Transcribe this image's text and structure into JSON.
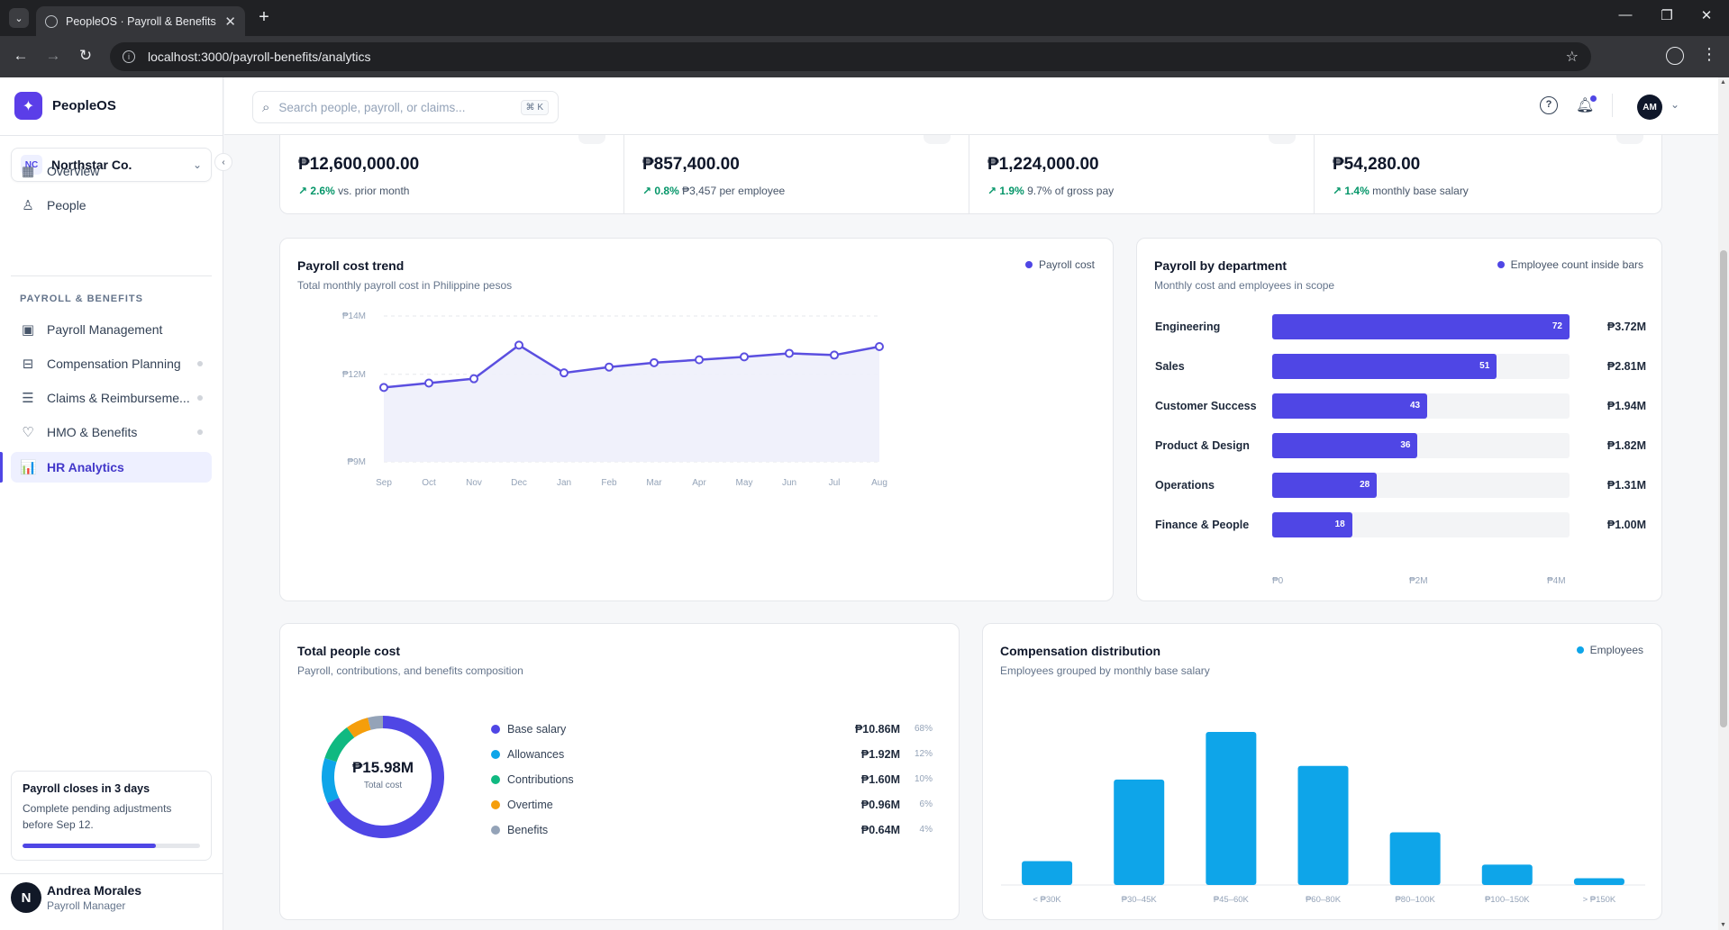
{
  "browser": {
    "tab_title": "PeopleOS · Payroll & Benefits",
    "url": "localhost:3000/payroll-benefits/analytics",
    "tab_close": "✕",
    "new_tab": "+"
  },
  "app": {
    "brand": "PeopleOS",
    "brand_color": "#5b3ee8",
    "accent": "#4f46e5"
  },
  "org": {
    "initials": "NC",
    "name": "Northstar Co."
  },
  "nav": {
    "primary": [
      {
        "label": "Overview",
        "icon": "grid-icon"
      },
      {
        "label": "People",
        "icon": "user-icon"
      }
    ],
    "section_label": "PAYROLL & BENEFITS",
    "secondary": [
      {
        "label": "Payroll Management",
        "icon": "wallet-icon"
      },
      {
        "label": "Compensation Planning",
        "icon": "briefcase-icon"
      },
      {
        "label": "Claims & Reimburseme...",
        "icon": "receipt-icon"
      },
      {
        "label": "HMO & Benefits",
        "icon": "heart-icon"
      },
      {
        "label": "HR Analytics",
        "icon": "bar-chart-icon"
      }
    ]
  },
  "payroll_close": {
    "title": "Payroll closes in 3 days",
    "body": "Complete pending adjustments before Sep 12.",
    "progress": 0.75
  },
  "user": {
    "initial": "N",
    "name": "Andrea Morales",
    "role": "Payroll Manager"
  },
  "topbar": {
    "search_placeholder": "Search people, payroll, or claims...",
    "shortcut": "⌘ K",
    "avatar_initials": "AM"
  },
  "kpis": [
    {
      "value": "₱12,600,000.00",
      "delta": "2.6%",
      "note": "vs. prior month"
    },
    {
      "value": "₱857,400.00",
      "delta": "0.8%",
      "note": "₱3,457 per employee"
    },
    {
      "value": "₱1,224,000.00",
      "delta": "1.9%",
      "note": "9.7% of gross pay"
    },
    {
      "value": "₱54,280.00",
      "delta": "1.4%",
      "note": "monthly base salary"
    }
  ],
  "trend": {
    "title": "Payroll cost trend",
    "subtitle": "Total monthly payroll cost in Philippine pesos",
    "legend": "Payroll cost"
  },
  "department": {
    "title": "Payroll by department",
    "subtitle": "Monthly cost and employees in scope",
    "legend": "Employee count inside bars",
    "axis": [
      "₱0",
      "₱2M",
      "₱4M"
    ]
  },
  "people_cost": {
    "title": "Total people cost",
    "subtitle": "Payroll, contributions, and benefits composition",
    "total": "₱15.98M",
    "total_label": "Total cost",
    "items": [
      {
        "name": "Base salary",
        "value": "₱10.86M",
        "pct": "68%",
        "color": "#4f46e5"
      },
      {
        "name": "Allowances",
        "value": "₱1.92M",
        "pct": "12%",
        "color": "#0ea5e9"
      },
      {
        "name": "Contributions",
        "value": "₱1.60M",
        "pct": "10%",
        "color": "#10b981"
      },
      {
        "name": "Overtime",
        "value": "₱0.96M",
        "pct": "6%",
        "color": "#f59e0b"
      },
      {
        "name": "Benefits",
        "value": "₱0.64M",
        "pct": "4%",
        "color": "#94a3b8"
      }
    ]
  },
  "distribution": {
    "title": "Compensation distribution",
    "subtitle": "Employees grouped by monthly base salary",
    "legend": "Employees"
  },
  "chart_data": [
    {
      "type": "line",
      "title": "Payroll cost trend",
      "categories": [
        "Sep",
        "Oct",
        "Nov",
        "Dec",
        "Jan",
        "Feb",
        "Mar",
        "Apr",
        "May",
        "Jun",
        "Jul",
        "Aug"
      ],
      "series": [
        {
          "name": "Payroll cost",
          "values": [
            11.55,
            11.7,
            11.85,
            13.0,
            12.05,
            12.25,
            12.4,
            12.5,
            12.6,
            12.72,
            12.66,
            12.95
          ]
        }
      ],
      "yticks": [
        "₱9M",
        "₱12M",
        "₱14M"
      ],
      "ytick_values": [
        9,
        12,
        14
      ],
      "ylim": [
        9,
        14
      ],
      "color": "#5b4fe0"
    },
    {
      "type": "bar",
      "title": "Payroll by department",
      "orientation": "horizontal",
      "categories": [
        "Engineering",
        "Sales",
        "Customer Success",
        "Product & Design",
        "Operations",
        "Finance & People"
      ],
      "values": [
        3.72,
        2.81,
        1.94,
        1.82,
        1.31,
        1.0
      ],
      "value_labels": [
        "₱3.72M",
        "₱2.81M",
        "₱1.94M",
        "₱1.82M",
        "₱1.31M",
        "₱1.00M"
      ],
      "employee_counts": [
        "72",
        "51",
        "43",
        "36",
        "28",
        "18"
      ],
      "xlim": [
        0,
        3.72
      ]
    },
    {
      "type": "pie",
      "title": "Total people cost",
      "categories": [
        "Base salary",
        "Allowances",
        "Contributions",
        "Overtime",
        "Benefits"
      ],
      "values": [
        68,
        12,
        10,
        6,
        4
      ]
    },
    {
      "type": "bar",
      "title": "Compensation distribution",
      "categories": [
        "< ₱30K",
        "₱30–45K",
        "₱45–60K",
        "₱60–80K",
        "₱80–100K",
        "₱100–150K",
        "> ₱150K"
      ],
      "series": [
        {
          "name": "Employees",
          "values": [
            14,
            62,
            90,
            70,
            31,
            12,
            4
          ]
        }
      ],
      "ylim": [
        0,
        90
      ],
      "color": "#0ea5e9"
    }
  ]
}
